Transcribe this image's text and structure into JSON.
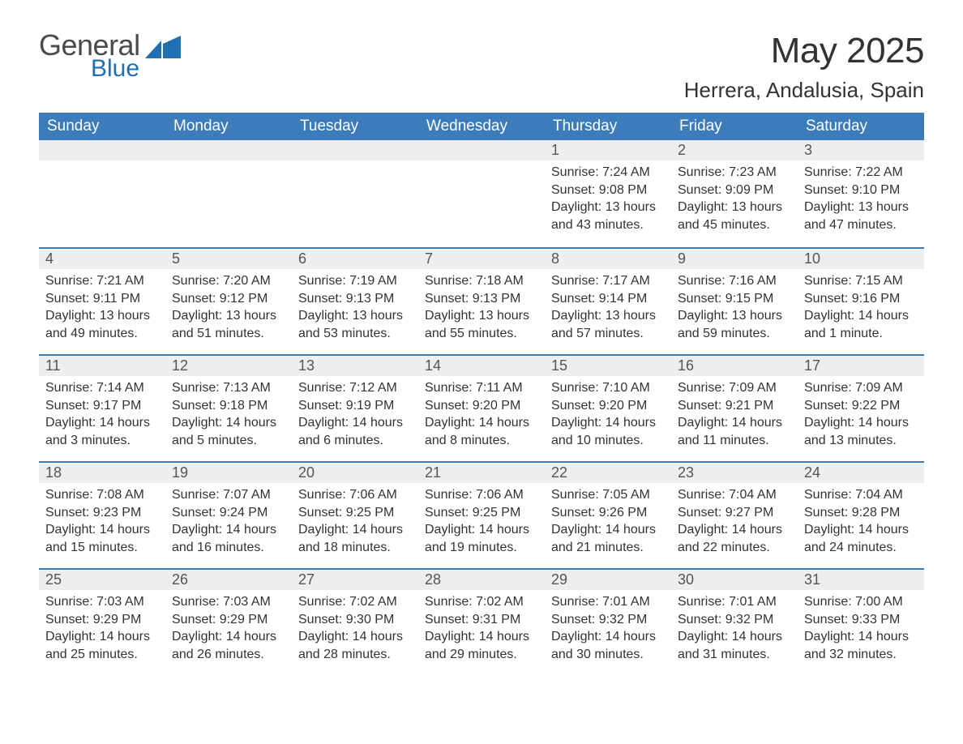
{
  "logo": {
    "general": "General",
    "blue": "Blue",
    "flag_color": "#1f6fb2"
  },
  "title": {
    "month": "May 2025",
    "location": "Herrera, Andalusia, Spain"
  },
  "calendar": {
    "header_bg": "#3d7cba",
    "header_fg": "#ffffff",
    "daynum_bg": "#eeeeee",
    "divider_color": "#3d7cba",
    "text_color": "#333333",
    "weekdays": [
      "Sunday",
      "Monday",
      "Tuesday",
      "Wednesday",
      "Thursday",
      "Friday",
      "Saturday"
    ],
    "weeks": [
      [
        null,
        null,
        null,
        null,
        {
          "day": "1",
          "sunrise": "Sunrise: 7:24 AM",
          "sunset": "Sunset: 9:08 PM",
          "daylight": "Daylight: 13 hours and 43 minutes."
        },
        {
          "day": "2",
          "sunrise": "Sunrise: 7:23 AM",
          "sunset": "Sunset: 9:09 PM",
          "daylight": "Daylight: 13 hours and 45 minutes."
        },
        {
          "day": "3",
          "sunrise": "Sunrise: 7:22 AM",
          "sunset": "Sunset: 9:10 PM",
          "daylight": "Daylight: 13 hours and 47 minutes."
        }
      ],
      [
        {
          "day": "4",
          "sunrise": "Sunrise: 7:21 AM",
          "sunset": "Sunset: 9:11 PM",
          "daylight": "Daylight: 13 hours and 49 minutes."
        },
        {
          "day": "5",
          "sunrise": "Sunrise: 7:20 AM",
          "sunset": "Sunset: 9:12 PM",
          "daylight": "Daylight: 13 hours and 51 minutes."
        },
        {
          "day": "6",
          "sunrise": "Sunrise: 7:19 AM",
          "sunset": "Sunset: 9:13 PM",
          "daylight": "Daylight: 13 hours and 53 minutes."
        },
        {
          "day": "7",
          "sunrise": "Sunrise: 7:18 AM",
          "sunset": "Sunset: 9:13 PM",
          "daylight": "Daylight: 13 hours and 55 minutes."
        },
        {
          "day": "8",
          "sunrise": "Sunrise: 7:17 AM",
          "sunset": "Sunset: 9:14 PM",
          "daylight": "Daylight: 13 hours and 57 minutes."
        },
        {
          "day": "9",
          "sunrise": "Sunrise: 7:16 AM",
          "sunset": "Sunset: 9:15 PM",
          "daylight": "Daylight: 13 hours and 59 minutes."
        },
        {
          "day": "10",
          "sunrise": "Sunrise: 7:15 AM",
          "sunset": "Sunset: 9:16 PM",
          "daylight": "Daylight: 14 hours and 1 minute."
        }
      ],
      [
        {
          "day": "11",
          "sunrise": "Sunrise: 7:14 AM",
          "sunset": "Sunset: 9:17 PM",
          "daylight": "Daylight: 14 hours and 3 minutes."
        },
        {
          "day": "12",
          "sunrise": "Sunrise: 7:13 AM",
          "sunset": "Sunset: 9:18 PM",
          "daylight": "Daylight: 14 hours and 5 minutes."
        },
        {
          "day": "13",
          "sunrise": "Sunrise: 7:12 AM",
          "sunset": "Sunset: 9:19 PM",
          "daylight": "Daylight: 14 hours and 6 minutes."
        },
        {
          "day": "14",
          "sunrise": "Sunrise: 7:11 AM",
          "sunset": "Sunset: 9:20 PM",
          "daylight": "Daylight: 14 hours and 8 minutes."
        },
        {
          "day": "15",
          "sunrise": "Sunrise: 7:10 AM",
          "sunset": "Sunset: 9:20 PM",
          "daylight": "Daylight: 14 hours and 10 minutes."
        },
        {
          "day": "16",
          "sunrise": "Sunrise: 7:09 AM",
          "sunset": "Sunset: 9:21 PM",
          "daylight": "Daylight: 14 hours and 11 minutes."
        },
        {
          "day": "17",
          "sunrise": "Sunrise: 7:09 AM",
          "sunset": "Sunset: 9:22 PM",
          "daylight": "Daylight: 14 hours and 13 minutes."
        }
      ],
      [
        {
          "day": "18",
          "sunrise": "Sunrise: 7:08 AM",
          "sunset": "Sunset: 9:23 PM",
          "daylight": "Daylight: 14 hours and 15 minutes."
        },
        {
          "day": "19",
          "sunrise": "Sunrise: 7:07 AM",
          "sunset": "Sunset: 9:24 PM",
          "daylight": "Daylight: 14 hours and 16 minutes."
        },
        {
          "day": "20",
          "sunrise": "Sunrise: 7:06 AM",
          "sunset": "Sunset: 9:25 PM",
          "daylight": "Daylight: 14 hours and 18 minutes."
        },
        {
          "day": "21",
          "sunrise": "Sunrise: 7:06 AM",
          "sunset": "Sunset: 9:25 PM",
          "daylight": "Daylight: 14 hours and 19 minutes."
        },
        {
          "day": "22",
          "sunrise": "Sunrise: 7:05 AM",
          "sunset": "Sunset: 9:26 PM",
          "daylight": "Daylight: 14 hours and 21 minutes."
        },
        {
          "day": "23",
          "sunrise": "Sunrise: 7:04 AM",
          "sunset": "Sunset: 9:27 PM",
          "daylight": "Daylight: 14 hours and 22 minutes."
        },
        {
          "day": "24",
          "sunrise": "Sunrise: 7:04 AM",
          "sunset": "Sunset: 9:28 PM",
          "daylight": "Daylight: 14 hours and 24 minutes."
        }
      ],
      [
        {
          "day": "25",
          "sunrise": "Sunrise: 7:03 AM",
          "sunset": "Sunset: 9:29 PM",
          "daylight": "Daylight: 14 hours and 25 minutes."
        },
        {
          "day": "26",
          "sunrise": "Sunrise: 7:03 AM",
          "sunset": "Sunset: 9:29 PM",
          "daylight": "Daylight: 14 hours and 26 minutes."
        },
        {
          "day": "27",
          "sunrise": "Sunrise: 7:02 AM",
          "sunset": "Sunset: 9:30 PM",
          "daylight": "Daylight: 14 hours and 28 minutes."
        },
        {
          "day": "28",
          "sunrise": "Sunrise: 7:02 AM",
          "sunset": "Sunset: 9:31 PM",
          "daylight": "Daylight: 14 hours and 29 minutes."
        },
        {
          "day": "29",
          "sunrise": "Sunrise: 7:01 AM",
          "sunset": "Sunset: 9:32 PM",
          "daylight": "Daylight: 14 hours and 30 minutes."
        },
        {
          "day": "30",
          "sunrise": "Sunrise: 7:01 AM",
          "sunset": "Sunset: 9:32 PM",
          "daylight": "Daylight: 14 hours and 31 minutes."
        },
        {
          "day": "31",
          "sunrise": "Sunrise: 7:00 AM",
          "sunset": "Sunset: 9:33 PM",
          "daylight": "Daylight: 14 hours and 32 minutes."
        }
      ]
    ]
  }
}
